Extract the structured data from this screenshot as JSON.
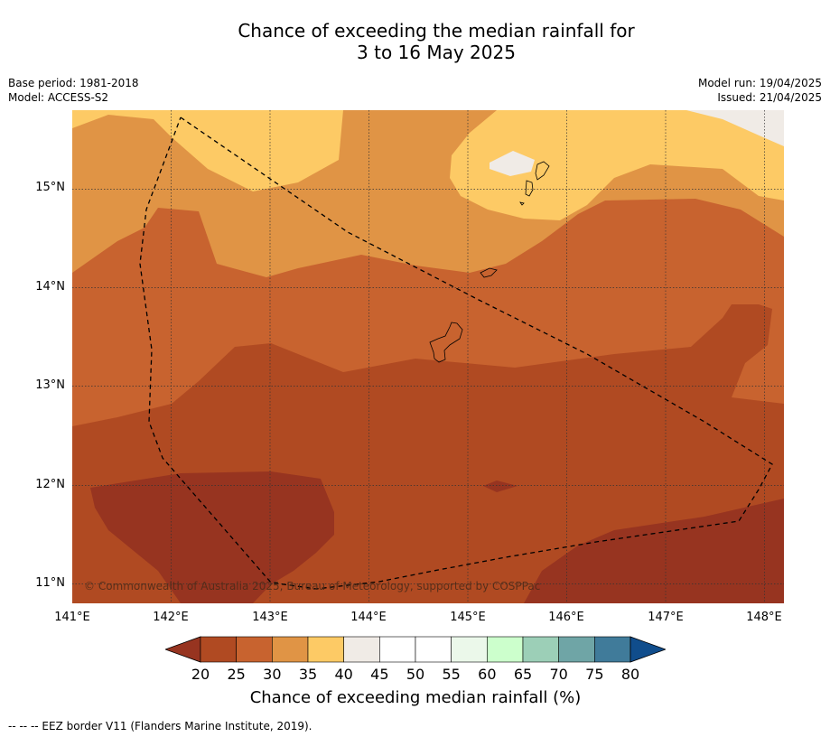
{
  "title_line1": "Chance of exceeding the median rainfall for",
  "title_line2": "3 to 16 May 2025",
  "meta_left": {
    "base_period": "Base period: 1981-2018",
    "model": "Model: ACCESS-S2"
  },
  "meta_right": {
    "model_run": "Model run: 19/04/2025",
    "issued": "Issued: 21/04/2025"
  },
  "map": {
    "lon_range": [
      141.0,
      148.2
    ],
    "lat_range": [
      10.8,
      15.8
    ],
    "lon_ticks": [
      "141°E",
      "142°E",
      "143°E",
      "144°E",
      "145°E",
      "146°E",
      "147°E",
      "148°E"
    ],
    "lat_ticks": [
      "15°N",
      "14°N",
      "13°N",
      "12°N",
      "11°N"
    ],
    "grid": "dotted",
    "copyright": "© Commonwealth of Australia 2025, Bureau of Meteorology, supported by COSPPac"
  },
  "colorbar": {
    "labels": [
      "20",
      "25",
      "30",
      "35",
      "40",
      "45",
      "50",
      "55",
      "60",
      "65",
      "70",
      "75",
      "80"
    ],
    "colors": [
      "#b04a22",
      "#c8632f",
      "#e09445",
      "#fdca65",
      "#f0ebe6",
      "#ffffff",
      "#ffffff",
      "#ebf8ea",
      "#ccffcc",
      "#9ccfb7",
      "#6fa5a6",
      "#407b9a"
    ],
    "under_color": "#973420",
    "over_color": "#104d8c",
    "title": "Chance of exceeding median rainfall (%)"
  },
  "footer": "--  --  -- EEZ border V11 (Flanders Marine Institute, 2019)."
}
